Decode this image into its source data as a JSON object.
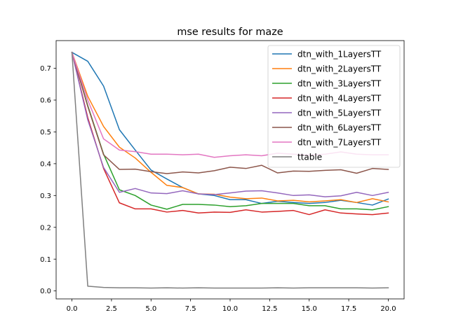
{
  "chart_data": {
    "type": "line",
    "title": "mse results for maze",
    "xlabel": "",
    "ylabel": "",
    "xlim": [
      -1.0,
      21.0
    ],
    "ylim": [
      -0.025,
      0.787
    ],
    "xticks": [
      0.0,
      2.5,
      5.0,
      7.5,
      10.0,
      12.5,
      15.0,
      17.5,
      20.0
    ],
    "xtick_labels": [
      "0.0",
      "2.5",
      "5.0",
      "7.5",
      "10.0",
      "12.5",
      "15.0",
      "17.5",
      "20.0"
    ],
    "yticks": [
      0.0,
      0.1,
      0.2,
      0.3,
      0.4,
      0.5,
      0.6,
      0.7
    ],
    "ytick_labels": [
      "0.0",
      "0.1",
      "0.2",
      "0.3",
      "0.4",
      "0.5",
      "0.6",
      "0.7"
    ],
    "grid": false,
    "legend_position": "top-right",
    "x": [
      0,
      1,
      2,
      3,
      4,
      5,
      6,
      7,
      8,
      9,
      10,
      11,
      12,
      13,
      14,
      15,
      16,
      17,
      18,
      19,
      20
    ],
    "series": [
      {
        "name": "dtn_with_1LayersTT",
        "color": "#1f77b4",
        "values": [
          0.75,
          0.722,
          0.644,
          0.507,
          0.443,
          0.38,
          0.352,
          0.325,
          0.305,
          0.3,
          0.287,
          0.287,
          0.275,
          0.282,
          0.278,
          0.275,
          0.278,
          0.285,
          0.278,
          0.27,
          0.289
        ]
      },
      {
        "name": "dtn_with_2LayersTT",
        "color": "#ff7f0e",
        "values": [
          0.75,
          0.612,
          0.517,
          0.452,
          0.418,
          0.373,
          0.332,
          0.325,
          0.305,
          0.304,
          0.295,
          0.29,
          0.292,
          0.283,
          0.285,
          0.28,
          0.283,
          0.287,
          0.278,
          0.29,
          0.28
        ]
      },
      {
        "name": "dtn_with_3LayersTT",
        "color": "#2ca02c",
        "values": [
          0.75,
          0.583,
          0.43,
          0.318,
          0.3,
          0.27,
          0.257,
          0.272,
          0.272,
          0.27,
          0.265,
          0.268,
          0.275,
          0.275,
          0.275,
          0.268,
          0.268,
          0.258,
          0.258,
          0.255,
          0.265
        ]
      },
      {
        "name": "dtn_with_4LayersTT",
        "color": "#d62728",
        "values": [
          0.75,
          0.545,
          0.385,
          0.277,
          0.258,
          0.258,
          0.248,
          0.253,
          0.245,
          0.248,
          0.247,
          0.255,
          0.248,
          0.25,
          0.253,
          0.24,
          0.255,
          0.245,
          0.242,
          0.24,
          0.245
        ]
      },
      {
        "name": "dtn_with_5LayersTT",
        "color": "#9467bd",
        "values": [
          0.75,
          0.538,
          0.388,
          0.31,
          0.322,
          0.308,
          0.306,
          0.315,
          0.305,
          0.303,
          0.308,
          0.314,
          0.315,
          0.308,
          0.3,
          0.302,
          0.296,
          0.299,
          0.31,
          0.3,
          0.31
        ]
      },
      {
        "name": "dtn_with_6LayersTT",
        "color": "#8c564b",
        "values": [
          0.75,
          0.58,
          0.428,
          0.382,
          0.383,
          0.375,
          0.369,
          0.374,
          0.371,
          0.378,
          0.389,
          0.385,
          0.395,
          0.371,
          0.377,
          0.376,
          0.379,
          0.381,
          0.37,
          0.385,
          0.382
        ]
      },
      {
        "name": "dtn_with_7LayersTT",
        "color": "#e377c2",
        "values": [
          0.75,
          0.6,
          0.478,
          0.443,
          0.438,
          0.43,
          0.43,
          0.428,
          0.43,
          0.42,
          0.425,
          0.428,
          0.425,
          0.433,
          0.43,
          0.427,
          0.43,
          0.437,
          0.43,
          0.428,
          0.428
        ]
      },
      {
        "name": "ttable",
        "color": "#7f7f7f",
        "values": [
          0.75,
          0.015,
          0.011,
          0.01,
          0.01,
          0.009,
          0.01,
          0.009,
          0.01,
          0.009,
          0.009,
          0.009,
          0.009,
          0.01,
          0.009,
          0.01,
          0.01,
          0.01,
          0.01,
          0.009,
          0.01
        ]
      }
    ]
  }
}
